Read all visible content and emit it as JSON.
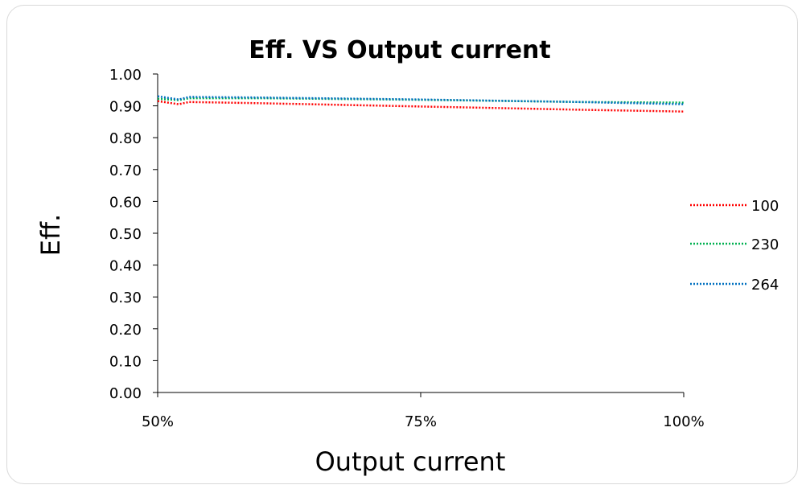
{
  "chart_data": {
    "type": "line",
    "title": "Eff. VS Output current",
    "xlabel": "Output current",
    "ylabel": "Eff.",
    "x_ticks": [
      "50%",
      "75%",
      "100%"
    ],
    "xlim": [
      0.5,
      1.0
    ],
    "ylim": [
      0,
      1
    ],
    "y_ticks": [
      "0.00",
      "0.10",
      "0.20",
      "0.30",
      "0.40",
      "0.50",
      "0.60",
      "0.70",
      "0.80",
      "0.90",
      "1.00"
    ],
    "x": [
      0.5,
      0.52,
      0.53,
      0.6,
      0.75,
      0.9,
      1.0
    ],
    "series": [
      {
        "name": "100",
        "color": "#ff0000",
        "values": [
          0.915,
          0.905,
          0.912,
          0.908,
          0.898,
          0.888,
          0.882
        ]
      },
      {
        "name": "230",
        "color": "#00b050",
        "values": [
          0.922,
          0.918,
          0.924,
          0.924,
          0.919,
          0.912,
          0.91
        ]
      },
      {
        "name": "264",
        "color": "#0070c0",
        "values": [
          0.93,
          0.92,
          0.928,
          0.926,
          0.92,
          0.912,
          0.905
        ]
      }
    ],
    "grid": false,
    "legend_position": "right",
    "line_style": "dotted"
  }
}
